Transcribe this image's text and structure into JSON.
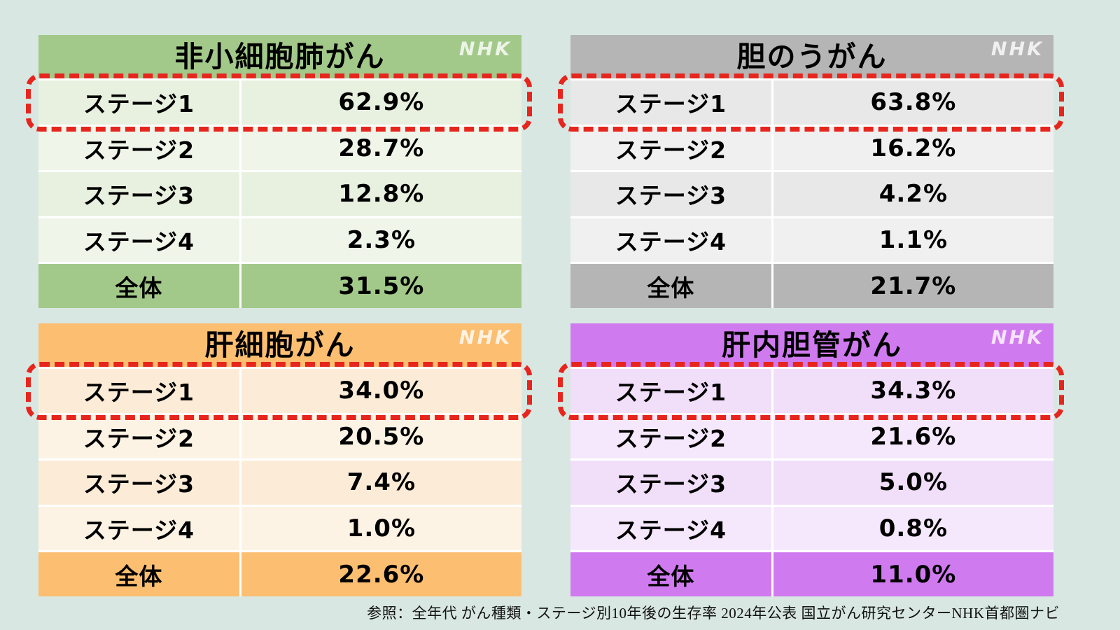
{
  "page": {
    "background": "#d8e7e2",
    "watermark": "NHK",
    "highlight_color": "#e6251d",
    "caption": "参照：全年代 がん種類・ステージ別10年後の生存率 2024年公表 国立がん研究センターNHK首都圏ナビ"
  },
  "tables": [
    {
      "title": "非小細胞肺がん",
      "theme": {
        "header": "#a2c989",
        "row": "#e8f0df",
        "row_alt": "#eff5e9",
        "total": "#a2c989"
      },
      "rows": [
        {
          "label": "ステージ1",
          "value": "62.9%",
          "highlighted": true
        },
        {
          "label": "ステージ2",
          "value": "28.7%"
        },
        {
          "label": "ステージ3",
          "value": "12.8%"
        },
        {
          "label": "ステージ4",
          "value": "2.3%"
        },
        {
          "label": "全体",
          "value": "31.5%",
          "total": true
        }
      ]
    },
    {
      "title": "胆のうがん",
      "theme": {
        "header": "#b5b5b5",
        "row": "#e8e8e8",
        "row_alt": "#f0f0f0",
        "total": "#b5b5b5"
      },
      "rows": [
        {
          "label": "ステージ1",
          "value": "63.8%",
          "highlighted": true
        },
        {
          "label": "ステージ2",
          "value": "16.2%"
        },
        {
          "label": "ステージ3",
          "value": "4.2%"
        },
        {
          "label": "ステージ4",
          "value": "1.1%"
        },
        {
          "label": "全体",
          "value": "21.7%",
          "total": true
        }
      ]
    },
    {
      "title": "肝細胞がん",
      "theme": {
        "header": "#fcbe70",
        "row": "#fcecd7",
        "row_alt": "#fdf3e4",
        "total": "#fcbe70"
      },
      "rows": [
        {
          "label": "ステージ1",
          "value": "34.0%",
          "highlighted": true
        },
        {
          "label": "ステージ2",
          "value": "20.5%"
        },
        {
          "label": "ステージ3",
          "value": "7.4%"
        },
        {
          "label": "ステージ4",
          "value": "1.0%"
        },
        {
          "label": "全体",
          "value": "22.6%",
          "total": true
        }
      ]
    },
    {
      "title": "肝内胆管がん",
      "theme": {
        "header": "#d07af0",
        "row": "#f1def9",
        "row_alt": "#f6e8fc",
        "total": "#d07af0"
      },
      "rows": [
        {
          "label": "ステージ1",
          "value": "34.3%",
          "highlighted": true
        },
        {
          "label": "ステージ2",
          "value": "21.6%"
        },
        {
          "label": "ステージ3",
          "value": "5.0%"
        },
        {
          "label": "ステージ4",
          "value": "0.8%"
        },
        {
          "label": "全体",
          "value": "11.0%",
          "total": true
        }
      ]
    }
  ],
  "chart_data": [
    {
      "type": "table",
      "title": "非小細胞肺がん",
      "categories": [
        "ステージ1",
        "ステージ2",
        "ステージ3",
        "ステージ4",
        "全体"
      ],
      "values": [
        62.9,
        28.7,
        12.8,
        2.3,
        31.5
      ],
      "unit": "%",
      "highlighted_row": "ステージ1"
    },
    {
      "type": "table",
      "title": "胆のうがん",
      "categories": [
        "ステージ1",
        "ステージ2",
        "ステージ3",
        "ステージ4",
        "全体"
      ],
      "values": [
        63.8,
        16.2,
        4.2,
        1.1,
        21.7
      ],
      "unit": "%",
      "highlighted_row": "ステージ1"
    },
    {
      "type": "table",
      "title": "肝細胞がん",
      "categories": [
        "ステージ1",
        "ステージ2",
        "ステージ3",
        "ステージ4",
        "全体"
      ],
      "values": [
        34.0,
        20.5,
        7.4,
        1.0,
        22.6
      ],
      "unit": "%",
      "highlighted_row": "ステージ1"
    },
    {
      "type": "table",
      "title": "肝内胆管がん",
      "categories": [
        "ステージ1",
        "ステージ2",
        "ステージ3",
        "ステージ4",
        "全体"
      ],
      "values": [
        34.3,
        21.6,
        5.0,
        0.8,
        11.0
      ],
      "unit": "%",
      "highlighted_row": "ステージ1"
    }
  ]
}
